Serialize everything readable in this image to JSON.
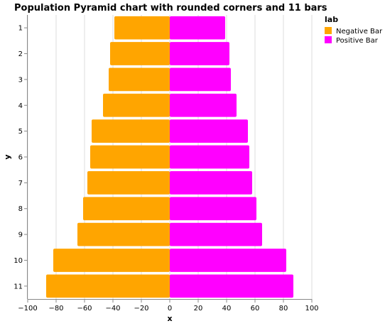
{
  "chart_data": {
    "type": "bar",
    "title": "Population Pyramid chart with rounded corners and 11 bars",
    "xlabel": "x",
    "ylabel": "y",
    "xlim": [
      -100,
      100
    ],
    "x_ticks": [
      -100,
      -80,
      -60,
      -40,
      -20,
      0,
      20,
      40,
      60,
      80,
      100
    ],
    "x_tick_labels": [
      "−100",
      "−80",
      "−60",
      "−40",
      "−20",
      "0",
      "20",
      "40",
      "60",
      "80",
      "100"
    ],
    "categories": [
      "1",
      "2",
      "3",
      "4",
      "5",
      "6",
      "7",
      "8",
      "9",
      "10",
      "11"
    ],
    "grid": true,
    "legend": {
      "title": "lab",
      "position": "top-right"
    },
    "series": [
      {
        "name": "Negative Bar",
        "color": "#FFA500",
        "values": [
          -39,
          -42,
          -43,
          -47,
          -55,
          -56,
          -58,
          -61,
          -65,
          -82,
          -87
        ]
      },
      {
        "name": "Positive Bar",
        "color": "#FF00FF",
        "values": [
          39,
          42,
          43,
          47,
          55,
          56,
          58,
          61,
          65,
          82,
          87
        ]
      }
    ]
  }
}
